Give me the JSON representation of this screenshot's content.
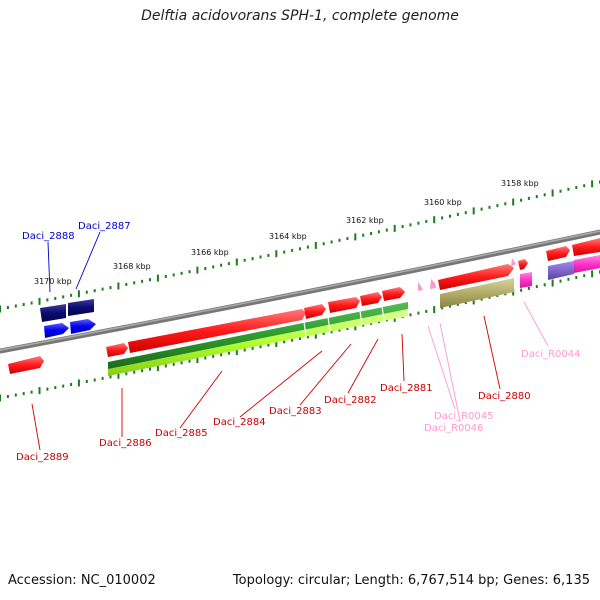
{
  "title": "Delftia acidovorans SPH-1, complete genome",
  "footer": {
    "accession": "Accession: NC_010002",
    "summary": "Topology: circular; Length: 6,767,514 bp; Genes: 6,135"
  },
  "colors": {
    "cds_forward": "#ff2a2a",
    "cds_reverse": "#0000ee",
    "cds_reverse_dark": "#0b0b70",
    "rna_gene": "#ff33cc",
    "rna_label": "#ff99cc",
    "rrna_band": "#b3ad6b",
    "rrna_band_purple": "#8066cc",
    "mid_green": "#2e9a2e",
    "lime": "#b3ff33",
    "backbone": "#777777",
    "tick_green": "#1e7a1e",
    "label_red": "#cc0000",
    "label_blue": "#0000cc"
  },
  "scale_labels": [
    "3170 kbp",
    "3168 kbp",
    "3166 kbp",
    "3164 kbp",
    "3162 kbp",
    "3160 kbp",
    "3158 kbp"
  ],
  "gene_labels": [
    {
      "id": "Daci_2888",
      "color": "blue"
    },
    {
      "id": "Daci_2887",
      "color": "blue"
    },
    {
      "id": "Daci_2889",
      "color": "red"
    },
    {
      "id": "Daci_2886",
      "color": "red"
    },
    {
      "id": "Daci_2885",
      "color": "red"
    },
    {
      "id": "Daci_2884",
      "color": "red"
    },
    {
      "id": "Daci_2883",
      "color": "red"
    },
    {
      "id": "Daci_2882",
      "color": "red"
    },
    {
      "id": "Daci_2881",
      "color": "red"
    },
    {
      "id": "Daci_2880",
      "color": "red"
    },
    {
      "id": "Daci_R0044",
      "color": "pink"
    },
    {
      "id": "Daci_R0045",
      "color": "pink"
    },
    {
      "id": "Daci_R0046",
      "color": "pink"
    }
  ]
}
